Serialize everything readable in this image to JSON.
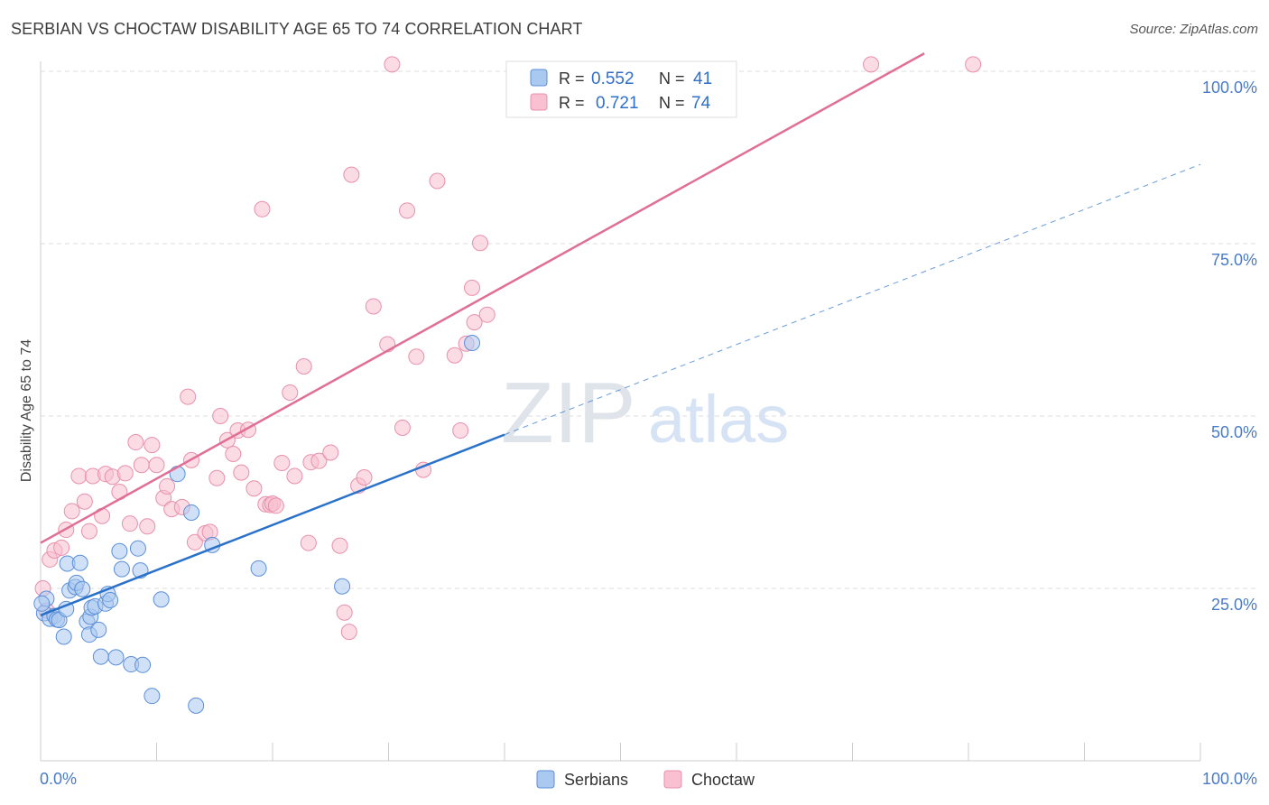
{
  "header": {
    "title": "SERBIAN VS CHOCTAW DISABILITY AGE 65 TO 74 CORRELATION CHART",
    "source": "Source: ZipAtlas.com"
  },
  "watermark": {
    "zip": "ZIP",
    "atlas": "atlas"
  },
  "legend_stats": {
    "rows": [
      {
        "r_label": "R =",
        "r_value": "0.552",
        "n_label": "N =",
        "n_value": "41"
      },
      {
        "r_label": "R =",
        "r_value": "0.721",
        "n_label": "N =",
        "n_value": "74"
      }
    ]
  },
  "colors": {
    "serbians_fill": "#a9c9f0",
    "serbians_stroke": "#5b8fd8",
    "serbians_line": "#2a72c9",
    "choctaw_fill": "#f8c0d0",
    "choctaw_stroke": "#e890ab",
    "choctaw_line": "#e06e96",
    "value_text": "#2f6fca",
    "tick_text": "#4a7bc8",
    "grid": "#dddddd"
  },
  "chart_data": {
    "type": "scatter",
    "title": "SERBIAN VS CHOCTAW DISABILITY AGE 65 TO 74 CORRELATION CHART",
    "xlabel": "",
    "ylabel": "Disability Age 65 to 74",
    "xlim": [
      0,
      100
    ],
    "ylim": [
      0,
      100
    ],
    "x_tick_labels": [
      "0.0%",
      "100.0%"
    ],
    "y_tick_labels": [
      "25.0%",
      "50.0%",
      "75.0%",
      "100.0%"
    ],
    "y_ticks": [
      25,
      50,
      75,
      100
    ],
    "grid": true,
    "legend_position": "bottom",
    "series": [
      {
        "name": "Serbians",
        "R": 0.552,
        "N": 41,
        "trend": {
          "x": [
            0,
            40
          ],
          "y": [
            21.1,
            47.3
          ]
        },
        "trend_extension": {
          "x": [
            40,
            100
          ],
          "y": [
            47.3,
            86.5
          ]
        },
        "points": [
          [
            0.3,
            21.4
          ],
          [
            0.5,
            23.5
          ],
          [
            0.8,
            20.6
          ],
          [
            1.2,
            21.0
          ],
          [
            1.4,
            20.5
          ],
          [
            1.6,
            20.4
          ],
          [
            2.0,
            18.0
          ],
          [
            2.2,
            22.0
          ],
          [
            2.3,
            28.6
          ],
          [
            2.5,
            24.7
          ],
          [
            3.0,
            25.2
          ],
          [
            3.1,
            25.8
          ],
          [
            3.4,
            28.7
          ],
          [
            3.6,
            24.9
          ],
          [
            4.0,
            20.2
          ],
          [
            4.2,
            18.3
          ],
          [
            4.3,
            20.9
          ],
          [
            4.4,
            22.2
          ],
          [
            4.7,
            22.4
          ],
          [
            5.0,
            19.0
          ],
          [
            5.2,
            15.1
          ],
          [
            5.6,
            22.8
          ],
          [
            5.8,
            24.2
          ],
          [
            6.0,
            23.3
          ],
          [
            6.5,
            15.0
          ],
          [
            6.8,
            30.4
          ],
          [
            7.0,
            27.8
          ],
          [
            7.8,
            14.0
          ],
          [
            8.4,
            30.8
          ],
          [
            8.6,
            27.6
          ],
          [
            8.8,
            13.9
          ],
          [
            9.6,
            9.4
          ],
          [
            10.4,
            23.4
          ],
          [
            11.8,
            41.6
          ],
          [
            13.0,
            36.0
          ],
          [
            13.4,
            8.0
          ],
          [
            14.8,
            31.3
          ],
          [
            18.8,
            27.9
          ],
          [
            26.0,
            25.3
          ],
          [
            37.2,
            60.6
          ],
          [
            0.1,
            22.8
          ]
        ]
      },
      {
        "name": "Choctaw",
        "R": 0.721,
        "N": 74,
        "trend": {
          "x": [
            0,
            76.2
          ],
          "y": [
            31.6,
            102.6
          ]
        },
        "points": [
          [
            0.2,
            25.0
          ],
          [
            0.5,
            21.8
          ],
          [
            0.8,
            29.2
          ],
          [
            1.2,
            30.5
          ],
          [
            1.8,
            30.9
          ],
          [
            2.2,
            33.5
          ],
          [
            2.7,
            36.2
          ],
          [
            3.3,
            41.3
          ],
          [
            3.8,
            37.6
          ],
          [
            4.2,
            33.3
          ],
          [
            4.5,
            41.3
          ],
          [
            5.3,
            35.5
          ],
          [
            5.6,
            41.6
          ],
          [
            6.2,
            41.2
          ],
          [
            6.8,
            39.0
          ],
          [
            7.3,
            41.7
          ],
          [
            7.7,
            34.4
          ],
          [
            8.2,
            46.2
          ],
          [
            8.7,
            42.9
          ],
          [
            9.2,
            34.0
          ],
          [
            9.6,
            45.8
          ],
          [
            10.0,
            42.9
          ],
          [
            10.6,
            38.1
          ],
          [
            10.9,
            39.8
          ],
          [
            11.3,
            36.5
          ],
          [
            12.2,
            36.8
          ],
          [
            12.7,
            52.8
          ],
          [
            13.0,
            43.6
          ],
          [
            13.3,
            31.7
          ],
          [
            14.2,
            33.0
          ],
          [
            14.6,
            33.2
          ],
          [
            15.2,
            41.0
          ],
          [
            15.5,
            50.0
          ],
          [
            16.1,
            46.5
          ],
          [
            16.6,
            44.5
          ],
          [
            17.0,
            47.9
          ],
          [
            17.3,
            41.8
          ],
          [
            17.9,
            48.0
          ],
          [
            18.4,
            39.5
          ],
          [
            19.1,
            80.0
          ],
          [
            19.4,
            37.2
          ],
          [
            19.8,
            37.1
          ],
          [
            20.0,
            37.3
          ],
          [
            20.3,
            37.0
          ],
          [
            20.8,
            43.2
          ],
          [
            21.5,
            53.4
          ],
          [
            21.9,
            41.3
          ],
          [
            22.7,
            57.2
          ],
          [
            23.1,
            31.6
          ],
          [
            23.3,
            43.3
          ],
          [
            24.0,
            43.5
          ],
          [
            25.0,
            44.7
          ],
          [
            25.8,
            31.2
          ],
          [
            26.2,
            21.5
          ],
          [
            26.6,
            18.7
          ],
          [
            26.8,
            85.0
          ],
          [
            27.4,
            39.9
          ],
          [
            27.9,
            41.1
          ],
          [
            28.7,
            65.9
          ],
          [
            29.9,
            60.4
          ],
          [
            30.3,
            101.0
          ],
          [
            31.2,
            48.3
          ],
          [
            31.6,
            79.8
          ],
          [
            32.4,
            58.6
          ],
          [
            33.0,
            42.2
          ],
          [
            34.2,
            84.1
          ],
          [
            35.7,
            58.8
          ],
          [
            36.2,
            47.9
          ],
          [
            36.7,
            60.5
          ],
          [
            37.2,
            68.6
          ],
          [
            37.4,
            63.6
          ],
          [
            37.9,
            75.1
          ],
          [
            38.5,
            64.7
          ],
          [
            71.6,
            101.0
          ],
          [
            80.4,
            101.0
          ]
        ]
      }
    ]
  }
}
